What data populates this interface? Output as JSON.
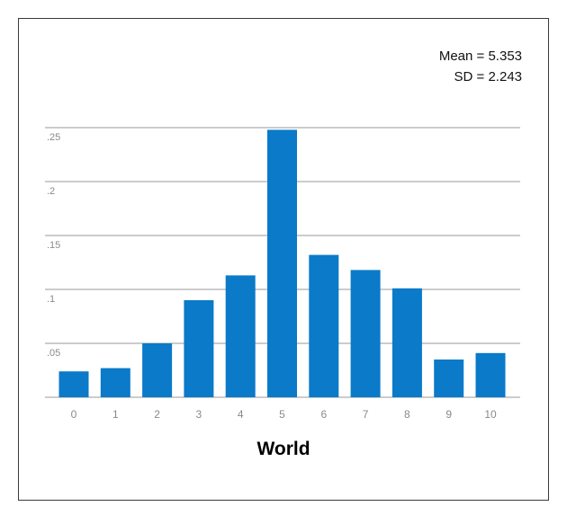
{
  "chart_data": {
    "type": "bar",
    "title": "World",
    "categories": [
      "0",
      "1",
      "2",
      "3",
      "4",
      "5",
      "6",
      "7",
      "8",
      "9",
      "10"
    ],
    "values": [
      0.024,
      0.027,
      0.05,
      0.09,
      0.113,
      0.248,
      0.132,
      0.118,
      0.101,
      0.035,
      0.041
    ],
    "ylim": [
      0,
      0.25
    ],
    "yticks": [
      0.05,
      0.1,
      0.15,
      0.2,
      0.25
    ],
    "ytick_labels": [
      ".05",
      ".1",
      ".15",
      ".2",
      ".25"
    ],
    "grid": true,
    "bar_color": "#0a7ac9",
    "annotations": {
      "mean": "Mean = 5.353",
      "sd": "SD = 2.243"
    }
  }
}
